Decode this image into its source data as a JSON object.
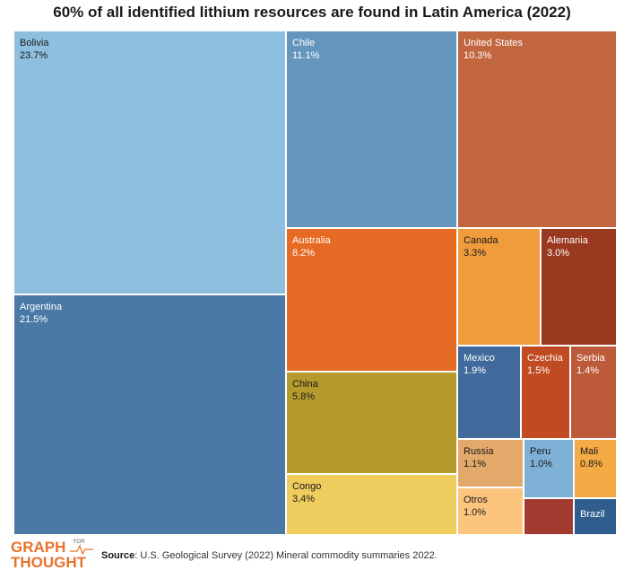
{
  "chart_data": {
    "type": "treemap",
    "title": "60% of all identified lithium resources are found in Latin America (2022)",
    "items": [
      {
        "name": "Bolivia",
        "value_label": "23.7%",
        "value": 23.7,
        "color": "#8fbfdf",
        "text_color": "#1a1a1a"
      },
      {
        "name": "Argentina",
        "value_label": "21.5%",
        "value": 21.5,
        "color": "#4a78a7",
        "text_color": "#ffffff"
      },
      {
        "name": "Chile",
        "value_label": "11.1%",
        "value": 11.1,
        "color": "#6395bd",
        "text_color": "#ffffff"
      },
      {
        "name": "United States",
        "value_label": "10.3%",
        "value": 10.3,
        "color": "#c1663f",
        "text_color": "#ffffff"
      },
      {
        "name": "Australia",
        "value_label": "8.2%",
        "value": 8.2,
        "color": "#e56a24",
        "text_color": "#ffffff"
      },
      {
        "name": "Canada",
        "value_label": "3.3%",
        "value": 3.3,
        "color": "#f09c3c",
        "text_color": "#1a1a1a"
      },
      {
        "name": "Alemania",
        "value_label": "3.0%",
        "value": 3.0,
        "color": "#9b3820",
        "text_color": "#ffffff"
      },
      {
        "name": "China",
        "value_label": "5.8%",
        "value": 5.8,
        "color": "#b59a2d",
        "text_color": "#1a1a1a"
      },
      {
        "name": "Congo",
        "value_label": "3.4%",
        "value": 3.4,
        "color": "#efcc5e",
        "text_color": "#1a1a1a"
      },
      {
        "name": "Mexico",
        "value_label": "1.9%",
        "value": 1.9,
        "color": "#3f6a9b",
        "text_color": "#ffffff"
      },
      {
        "name": "Czechia",
        "value_label": "1.5%",
        "value": 1.5,
        "color": "#c04b23",
        "text_color": "#ffffff"
      },
      {
        "name": "Serbia",
        "value_label": "1.4%",
        "value": 1.4,
        "color": "#bd5a3a",
        "text_color": "#ffffff"
      },
      {
        "name": "Russia",
        "value_label": "1.1%",
        "value": 1.1,
        "color": "#e2a96b",
        "text_color": "#1a1a1a"
      },
      {
        "name": "Peru",
        "value_label": "1.0%",
        "value": 1.0,
        "color": "#7fb0d6",
        "text_color": "#1a1a1a"
      },
      {
        "name": "Mali",
        "value_label": "0.8%",
        "value": 0.8,
        "color": "#f4ab45",
        "text_color": "#1a1a1a"
      },
      {
        "name": "Otros",
        "value_label": "1.0%",
        "value": 1.0,
        "color": "#fcc57e",
        "text_color": "#1a1a1a"
      },
      {
        "name": "",
        "value_label": "",
        "color": "#a33a32",
        "text_color": "#ffffff"
      },
      {
        "name": "Brazil",
        "value_label": "",
        "color": "#2f5d8e",
        "text_color": "#ffffff"
      }
    ]
  },
  "footer": {
    "logo_top": "GRAPH",
    "logo_small": "FOR",
    "logo_bottom": "THOUGHT",
    "source_label": "Source",
    "source_text": ": U.S. Geological Survey (2022) Mineral commodity summaries 2022."
  }
}
